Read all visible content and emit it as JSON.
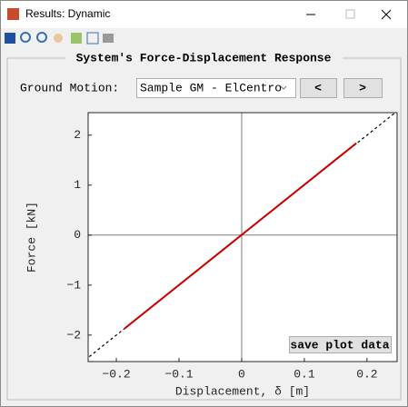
{
  "window": {
    "title": "Results: Dynamic"
  },
  "panel": {
    "title": "System's Force-Displacement Response"
  },
  "controls": {
    "label": "Ground Motion:",
    "dropdown": "Sample GM - ElCentro",
    "prev": "<",
    "next": ">",
    "save": "save plot data"
  },
  "chart_data": {
    "type": "line",
    "xlabel": "Displacement, δ [m]",
    "ylabel": "Force [kN]",
    "xlim": [
      -0.245,
      0.248
    ],
    "ylim": [
      -2.53,
      2.45
    ],
    "xticks": [
      {
        "value": -0.2,
        "label": "−0.2"
      },
      {
        "value": -0.1,
        "label": "−0.1"
      },
      0,
      0.1,
      0.2
    ],
    "yticks": [
      {
        "value": -2,
        "label": "−2"
      },
      {
        "value": -1,
        "label": "−1"
      },
      0,
      1,
      2
    ],
    "zero_lines": true,
    "series": [
      {
        "color": "#000000",
        "dashed": true,
        "x": [
          -0.25,
          0.25
        ],
        "values": [
          -2.5,
          2.5
        ]
      },
      {
        "color": "#cc0000",
        "dashed": false,
        "x": [
          -0.187,
          0.183
        ],
        "values": [
          -1.87,
          1.84
        ]
      }
    ]
  }
}
